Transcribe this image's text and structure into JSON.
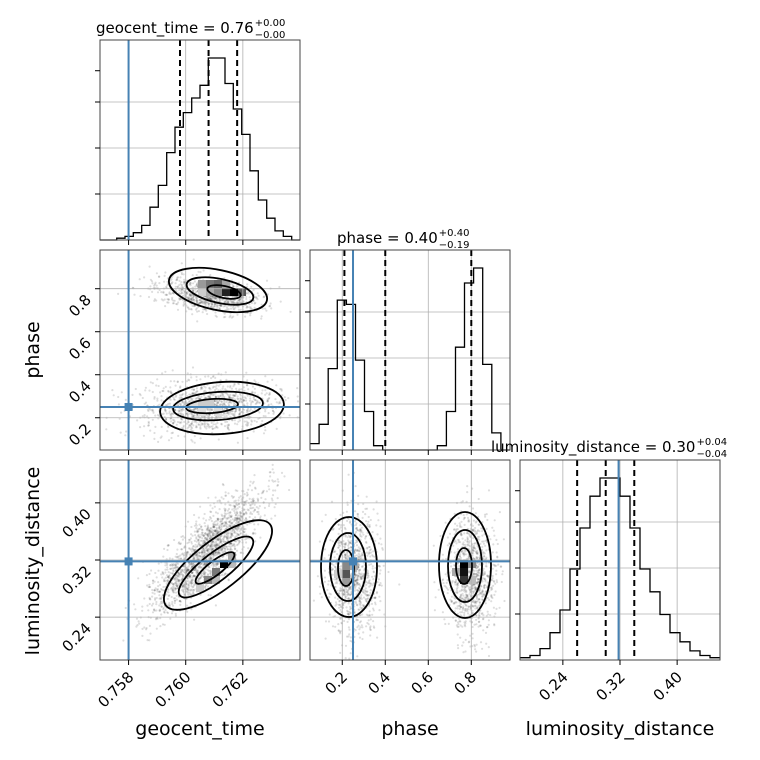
{
  "chart_data": {
    "type": "corner",
    "parameters": [
      "geocent_time",
      "phase",
      "luminosity_distance"
    ],
    "truth": {
      "geocent_time": 0.758,
      "phase": 0.25,
      "luminosity_distance": 0.318
    },
    "truth_color": "#4682b4",
    "ranges": {
      "geocent_time": [
        0.757,
        0.764
      ],
      "phase": [
        0.05,
        0.98
      ],
      "luminosity_distance": [
        0.18,
        0.46
      ]
    },
    "titles": [
      {
        "text": "geocent_time = 0.76",
        "sup": "+0.00",
        "sub": "−0.00"
      },
      {
        "text": "phase = 0.40",
        "sup": "+0.40",
        "sub": "−0.19"
      },
      {
        "text": "luminosity_distance = 0.30",
        "sup": "+0.04",
        "sub": "−0.04"
      }
    ],
    "xticks": {
      "geocent_time": {
        "values": [
          0.758,
          0.76,
          0.762
        ],
        "labels": [
          "0.758",
          "0.760",
          "0.762"
        ]
      },
      "phase": {
        "values": [
          0.2,
          0.4,
          0.6,
          0.8
        ],
        "labels": [
          "0.2",
          "0.4",
          "0.6",
          "0.8"
        ]
      },
      "luminosity_distance": {
        "values": [
          0.24,
          0.32,
          0.4
        ],
        "labels": [
          "0.24",
          "0.32",
          "0.40"
        ]
      }
    },
    "yticks": {
      "phase": {
        "values": [
          0.2,
          0.4,
          0.6,
          0.8
        ],
        "labels": [
          "0.2",
          "0.4",
          "0.6",
          "0.8"
        ]
      },
      "luminosity_distance": {
        "values": [
          0.24,
          0.32,
          0.4
        ],
        "labels": [
          "0.24",
          "0.32",
          "0.40"
        ]
      }
    },
    "axis_labels": {
      "x": [
        "geocent_time",
        "phase",
        "luminosity_distance"
      ],
      "y": [
        "phase",
        "luminosity_distance"
      ]
    },
    "quantiles": {
      "geocent_time": [
        0.7598,
        0.7608,
        0.7618
      ],
      "phase": [
        0.21,
        0.4,
        0.8
      ],
      "luminosity_distance": [
        0.26,
        0.3,
        0.34
      ]
    },
    "histograms": {
      "geocent_time": [
        0,
        0,
        1,
        2,
        4,
        8,
        18,
        30,
        48,
        62,
        70,
        78,
        85,
        100,
        100,
        86,
        72,
        58,
        38,
        22,
        12,
        5,
        2,
        0
      ],
      "phase": [
        3,
        12,
        38,
        70,
        68,
        42,
        18,
        2,
        0,
        0,
        0,
        0,
        0,
        0,
        2,
        18,
        48,
        78,
        85,
        40,
        8,
        0
      ],
      "luminosity_distance": [
        1,
        2,
        5,
        12,
        22,
        40,
        58,
        72,
        80,
        80,
        72,
        58,
        40,
        30,
        20,
        12,
        8,
        4,
        2,
        1
      ]
    },
    "grid": true
  }
}
